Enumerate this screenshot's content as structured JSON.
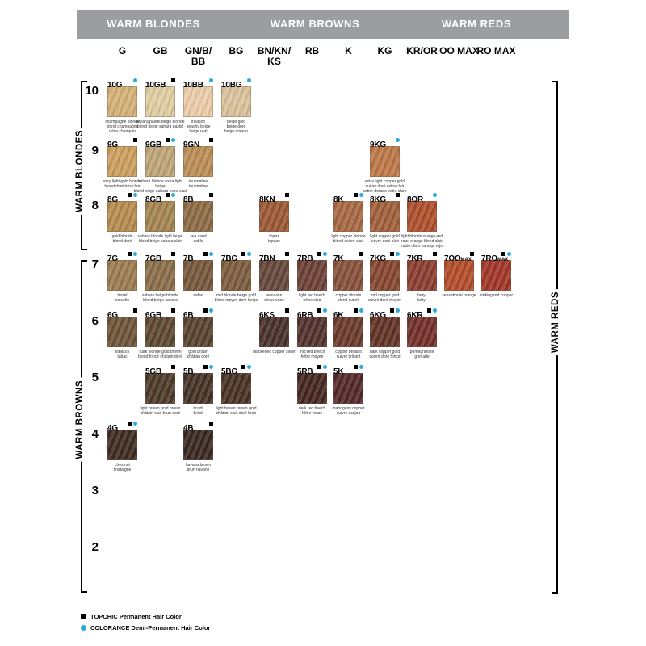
{
  "header": {
    "bar_color": "#9b9da0",
    "sections": [
      {
        "label": "WARM BLONDES"
      },
      {
        "label": "WARM BROWNS"
      },
      {
        "label": "WARM REDS"
      }
    ]
  },
  "columns": [
    {
      "line1": "G"
    },
    {
      "line1": "GB"
    },
    {
      "line1": "GN/B/",
      "line2": "BB"
    },
    {
      "line1": "BG"
    },
    {
      "line1": "BN/KN/",
      "line2": "KS"
    },
    {
      "line1": "RB"
    },
    {
      "line1": "K"
    },
    {
      "line1": "KG"
    },
    {
      "line1": "KR/OR"
    },
    {
      "line1": "OO MAX"
    },
    {
      "line1": "RO MAX"
    }
  ],
  "levels": [
    10,
    9,
    8,
    7,
    6,
    5,
    4,
    3,
    2
  ],
  "side_labels": {
    "left_top": "WARM BLONDES",
    "left_bottom": "WARM BROWNS",
    "right": "WARM REDS"
  },
  "brands": {
    "topchic_color": "#000000",
    "colorance_color": "#29abe2"
  },
  "legend": [
    {
      "marker": "topchic-square",
      "label": "TOPCHIC Permanent Hair Color"
    },
    {
      "marker": "colorance-dot",
      "label": "COLORANCE Demi-Permanent Hair Color"
    }
  ],
  "swatches": [
    {
      "code": "10G",
      "level": 10,
      "col": 0,
      "color": "#d6b277",
      "markers": [
        "colorance"
      ],
      "desc": [
        "champagne blonde",
        "blond champagne",
        "rubio champán"
      ]
    },
    {
      "code": "10GB",
      "level": 10,
      "col": 1,
      "color": "#e2cfa2",
      "markers": [
        "topchic"
      ],
      "desc": [
        "sahara pastel beige blonde",
        "blond beige sahara pastel"
      ]
    },
    {
      "code": "10BB",
      "level": 10,
      "col": 2,
      "color": "#eeceaa",
      "markers": [
        "colorance"
      ],
      "desc": [
        "irisation",
        "peachy beige",
        "beige real"
      ]
    },
    {
      "code": "10BG",
      "level": 10,
      "col": 3,
      "color": "#dcc39c",
      "markers": [
        "colorance"
      ],
      "desc": [
        "beige gold",
        "beige doré",
        "beige dorado"
      ]
    },
    {
      "code": "9G",
      "level": 9,
      "col": 0,
      "color": "#cd9f5e",
      "markers": [
        "topchic"
      ],
      "desc": [
        "very light gold blonde",
        "blond doré très clair"
      ]
    },
    {
      "code": "9GB",
      "level": 9,
      "col": 1,
      "color": "#c0a678",
      "markers": [
        "topchic",
        "colorance"
      ],
      "desc": [
        "sahara blonde extra light beige",
        "blond beige sahara extra clair"
      ]
    },
    {
      "code": "9GN",
      "level": 9,
      "col": 2,
      "color": "#bb8e55",
      "markers": [
        "topchic"
      ],
      "desc": [
        "tourmaline",
        "tourmaline"
      ]
    },
    {
      "code": "9KG",
      "level": 9,
      "col": 7,
      "color": "#bf7847",
      "markers": [
        "colorance"
      ],
      "desc": [
        "extra light copper gold",
        "cuivré doré extra clair",
        "cobre dorado extra claro"
      ]
    },
    {
      "code": "8G",
      "level": 8,
      "col": 0,
      "color": "#b78c4e",
      "markers": [
        "topchic",
        "colorance"
      ],
      "desc": [
        "gold blonde",
        "blond doré"
      ]
    },
    {
      "code": "8GB",
      "level": 8,
      "col": 1,
      "color": "#a5854f",
      "markers": [
        "topchic",
        "colorance"
      ],
      "desc": [
        "sahara blonde light beige",
        "blond beige sahara clair"
      ]
    },
    {
      "code": "8B",
      "level": 8,
      "col": 2,
      "color": "#8e6b45",
      "markers": [
        "topchic"
      ],
      "desc": [
        "sea sand",
        "sable"
      ]
    },
    {
      "code": "8KN",
      "level": 8,
      "col": 4,
      "color": "#9c5834",
      "markers": [
        "topchic"
      ],
      "desc": [
        "topaz",
        "topaze"
      ]
    },
    {
      "code": "8K",
      "level": 8,
      "col": 6,
      "color": "#a96843",
      "markers": [
        "topchic",
        "colorance"
      ],
      "desc": [
        "light copper blonde",
        "blond cuivré clair"
      ]
    },
    {
      "code": "8KG",
      "level": 8,
      "col": 7,
      "color": "#a2603b",
      "markers": [
        "topchic"
      ],
      "desc": [
        "light copper gold",
        "cuivré doré clair"
      ]
    },
    {
      "code": "8OR",
      "level": 8,
      "col": 8,
      "color": "#af4f2c",
      "markers": [
        "colorance"
      ],
      "desc": [
        "light blonde orange-red",
        "roux orangé blond clair",
        "rubio claro naranja rojo"
      ]
    },
    {
      "code": "7G",
      "level": 7,
      "col": 0,
      "color": "#9d7d51",
      "markers": [
        "topchic",
        "colorance"
      ],
      "desc": [
        "hazel",
        "noisette"
      ]
    },
    {
      "code": "7GB",
      "level": 7,
      "col": 1,
      "color": "#8b6e49",
      "markers": [
        "topchic"
      ],
      "desc": [
        "sahara beige blonde",
        "blond beige sahara"
      ]
    },
    {
      "code": "7B",
      "level": 7,
      "col": 2,
      "color": "#76573b",
      "markers": [
        "topchic",
        "colorance"
      ],
      "desc": [
        "safari"
      ]
    },
    {
      "code": "7BG",
      "level": 7,
      "col": 3,
      "color": "#7d5d3d",
      "markers": [
        "topchic",
        "colorance"
      ],
      "desc": [
        "mid blonde beige gold",
        "blond moyen doré beige"
      ]
    },
    {
      "code": "7BN",
      "level": 7,
      "col": 4,
      "color": "#65473b",
      "markers": [
        "topchic"
      ],
      "desc": [
        "vesuvian",
        "vésuvienne"
      ]
    },
    {
      "code": "7RB",
      "level": 7,
      "col": 5,
      "color": "#6c4036",
      "markers": [
        "topchic",
        "colorance"
      ],
      "desc": [
        "light red beech",
        "hêtre clair"
      ]
    },
    {
      "code": "7K",
      "level": 7,
      "col": 6,
      "color": "#88513b",
      "markers": [
        "topchic"
      ],
      "desc": [
        "copper blonde",
        "blond cuivré"
      ]
    },
    {
      "code": "7KG",
      "level": 7,
      "col": 7,
      "color": "#87462f",
      "markers": [
        "topchic",
        "colorance"
      ],
      "desc": [
        "mid copper gold",
        "cuivré doré moyen"
      ]
    },
    {
      "code": "7KR",
      "level": 7,
      "col": 8,
      "color": "#8d3d31",
      "markers": [
        "topchic"
      ],
      "desc": [
        "beryl",
        "béryl"
      ]
    },
    {
      "code": "7OO",
      "suffix": "MAX",
      "level": 7,
      "col": 9,
      "color": "#b44c29",
      "markers": [
        "topchic"
      ],
      "desc": [
        "sensational orange"
      ]
    },
    {
      "code": "7RO",
      "suffix": "MAX",
      "level": 7,
      "col": 10,
      "color": "#a23628",
      "markers": [
        "topchic",
        "colorance"
      ],
      "desc": [
        "striking red copper"
      ]
    },
    {
      "code": "6G",
      "level": 6,
      "col": 0,
      "color": "#6e5437",
      "markers": [
        "topchic"
      ],
      "desc": [
        "tobacco",
        "tabac"
      ]
    },
    {
      "code": "6GB",
      "level": 6,
      "col": 1,
      "color": "#5d4930",
      "markers": [
        "topchic"
      ],
      "desc": [
        "dark blonde gold brown",
        "blond foncé châtain doré"
      ]
    },
    {
      "code": "6B",
      "level": 6,
      "col": 2,
      "color": "#59422f",
      "markers": [
        "topchic",
        "colorance"
      ],
      "desc": [
        "gold brown",
        "châtain doré"
      ]
    },
    {
      "code": "6KS",
      "level": 6,
      "col": 4,
      "color": "#48312d",
      "markers": [
        "topchic"
      ],
      "desc": [
        "blackened copper silver"
      ]
    },
    {
      "code": "6RB",
      "level": 6,
      "col": 5,
      "color": "#53312d",
      "markers": [
        "topchic",
        "colorance"
      ],
      "desc": [
        "mid red beech",
        "hêtre moyen"
      ]
    },
    {
      "code": "6K",
      "level": 6,
      "col": 6,
      "color": "#6a3a2b",
      "markers": [
        "topchic",
        "colorance"
      ],
      "desc": [
        "copper brilliant",
        "cuivre brillant"
      ]
    },
    {
      "code": "6KG",
      "level": 6,
      "col": 7,
      "color": "#623326",
      "markers": [
        "topchic",
        "colorance"
      ],
      "desc": [
        "dark copper gold",
        "cuivré doré foncé"
      ]
    },
    {
      "code": "6KR",
      "level": 6,
      "col": 8,
      "color": "#73302b",
      "markers": [
        "topchic",
        "colorance"
      ],
      "desc": [
        "pomegranate",
        "grenade"
      ]
    },
    {
      "code": "5GB",
      "level": 5,
      "col": 1,
      "color": "#4d3a28",
      "markers": [
        "topchic"
      ],
      "desc": [
        "light brown gold brown",
        "châtain clair brun doré"
      ]
    },
    {
      "code": "5B",
      "level": 5,
      "col": 2,
      "color": "#453226",
      "markers": [
        "topchic",
        "colorance"
      ],
      "desc": [
        "brazil",
        "brésil"
      ]
    },
    {
      "code": "5BG",
      "level": 5,
      "col": 3,
      "color": "#493224",
      "markers": [
        "topchic",
        "colorance"
      ],
      "desc": [
        "light brown brown gold",
        "châtain clair doré brun"
      ]
    },
    {
      "code": "5RB",
      "level": 5,
      "col": 5,
      "color": "#45261f",
      "markers": [
        "topchic",
        "colorance"
      ],
      "desc": [
        "dark red beech",
        "hêtre foncé"
      ]
    },
    {
      "code": "5K",
      "level": 5,
      "col": 6,
      "color": "#55282b",
      "markers": [
        "topchic",
        "colorance"
      ],
      "desc": [
        "mahogany copper",
        "cuivre acajou"
      ]
    },
    {
      "code": "4G",
      "level": 4,
      "col": 0,
      "color": "#3f2b20",
      "markers": [
        "topchic",
        "colorance"
      ],
      "desc": [
        "chestnut",
        "châtaigne"
      ]
    },
    {
      "code": "4B",
      "level": 4,
      "col": 2,
      "color": "#392821",
      "markers": [
        "topchic"
      ],
      "desc": [
        "havana brown",
        "brun havane"
      ]
    }
  ]
}
